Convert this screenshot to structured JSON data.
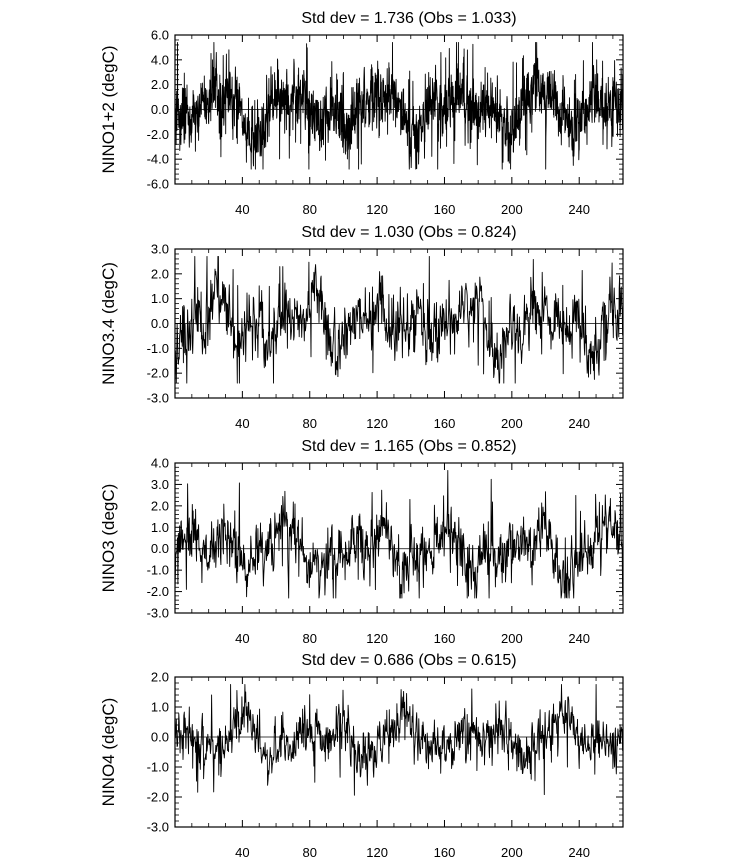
{
  "chart_data": [
    {
      "type": "line",
      "title": "Std dev = 1.736 (Obs = 1.033)",
      "ylabel": "NINO1+2 (degC)",
      "xlabel": "",
      "xlim": [
        0,
        266
      ],
      "ylim": [
        -6.0,
        6.0
      ],
      "xticks": [
        40,
        80,
        120,
        160,
        200,
        240
      ],
      "yticks": [
        6.0,
        4.0,
        2.0,
        0.0,
        -2.0,
        -4.0,
        -6.0
      ],
      "ytick_labels": [
        "6.0",
        "4.0",
        "2.0",
        "0.0",
        "-2.0",
        "-4.0",
        "-6.0"
      ],
      "reference_line": 0.0,
      "x_step": 0.125,
      "gen": {
        "amp": 2.04,
        "noise": 0.85,
        "spike": 0.05,
        "seed": 11
      },
      "series": [
        {
          "values": []
        }
      ]
    },
    {
      "type": "line",
      "title": "Std dev = 1.030 (Obs = 0.824)",
      "ylabel": "NINO3.4 (degC)",
      "xlabel": "",
      "xlim": [
        0,
        266
      ],
      "ylim": [
        -3.0,
        3.0
      ],
      "xticks": [
        40,
        80,
        120,
        160,
        200,
        240
      ],
      "yticks": [
        3.0,
        2.0,
        1.0,
        0.0,
        -1.0,
        -2.0,
        -3.0
      ],
      "ytick_labels": [
        "3.0",
        "2.0",
        "1.0",
        "0.0",
        "-1.0",
        "-2.0",
        "-3.0"
      ],
      "reference_line": 0.0,
      "x_step": 0.25,
      "gen": {
        "amp": 1.03,
        "noise": 0.45,
        "spike": 0.05,
        "seed": 23
      },
      "series": [
        {
          "values": []
        }
      ]
    },
    {
      "type": "line",
      "title": "Std dev = 1.165 (Obs = 0.852)",
      "ylabel": "NINO3 (degC)",
      "xlabel": "",
      "xlim": [
        0,
        266
      ],
      "ylim": [
        -3.0,
        4.0
      ],
      "xticks": [
        40,
        80,
        120,
        160,
        200,
        240
      ],
      "yticks": [
        4.0,
        3.0,
        2.0,
        1.0,
        0.0,
        -1.0,
        -2.0,
        -3.0
      ],
      "ytick_labels": [
        "4.0",
        "3.0",
        "2.0",
        "1.0",
        "0.0",
        "-1.0",
        "-2.0",
        "-3.0"
      ],
      "reference_line": 0.0,
      "x_step": 0.25,
      "gen": {
        "amp": 1.17,
        "noise": 0.5,
        "spike": 0.05,
        "seed": 37
      },
      "series": [
        {
          "values": []
        }
      ]
    },
    {
      "type": "line",
      "title": "Std dev = 0.686 (Obs = 0.615)",
      "ylabel": "NINO4 (degC)",
      "xlabel": "",
      "xlim": [
        0,
        266
      ],
      "ylim": [
        -3.0,
        2.0
      ],
      "xticks": [
        40,
        80,
        120,
        160,
        200,
        240
      ],
      "yticks": [
        2.0,
        1.0,
        0.0,
        -1.0,
        -2.0,
        -3.0
      ],
      "ytick_labels": [
        "2.0",
        "1.0",
        "0.0",
        "-1.0",
        "-2.0",
        "-3.0"
      ],
      "reference_line": 0.0,
      "x_step": 0.25,
      "gen": {
        "amp": 0.69,
        "noise": 0.3,
        "spike": 0.05,
        "seed": 53
      },
      "series": [
        {
          "values": []
        }
      ]
    }
  ]
}
